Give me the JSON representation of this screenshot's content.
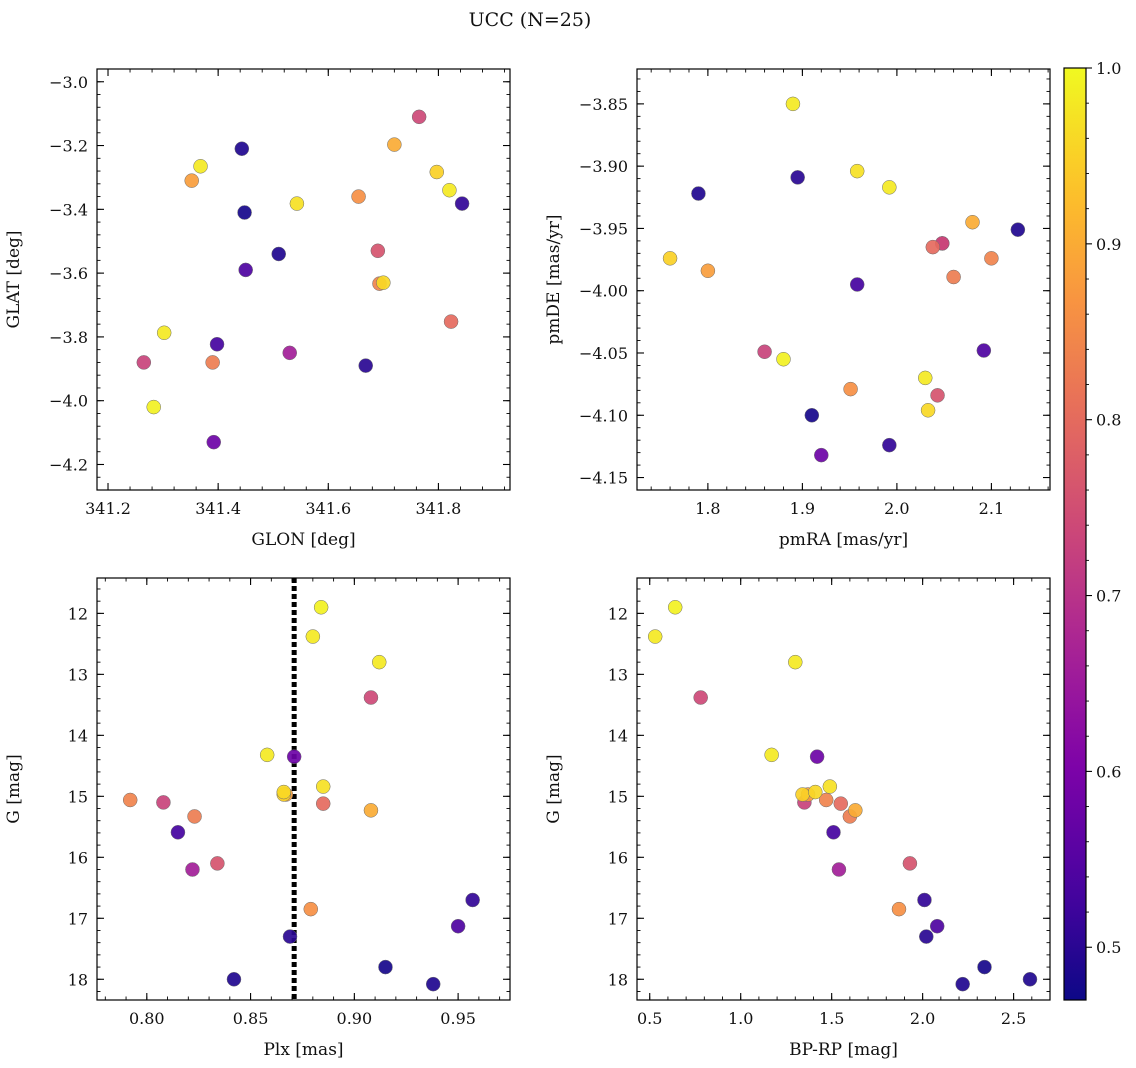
{
  "chart_data": {
    "type": "scatter",
    "title": "UCC (N=25)",
    "colorbar": {
      "range": [
        0.47,
        1.0
      ],
      "ticks": [
        "0.5",
        "0.6",
        "0.7",
        "0.8",
        "0.9",
        "1.0"
      ],
      "colormap": "plasma"
    },
    "panels": [
      {
        "xlabel": "GLON [deg]",
        "ylabel": "GLAT [deg]",
        "xlim": [
          341.18,
          341.93
        ],
        "ylim": [
          -4.28,
          -2.96
        ],
        "invert_y": false,
        "xticks": [
          "341.2",
          "341.4",
          "341.6",
          "341.8"
        ],
        "yticks": [
          "−4.2",
          "−4.0",
          "−3.8",
          "−3.6",
          "−3.4",
          "−3.2",
          "−3.0"
        ]
      },
      {
        "xlabel": "pmRA [mas/yr]",
        "ylabel": "pmDE [mas/yr]",
        "xlim": [
          1.725,
          2.162
        ],
        "ylim": [
          -4.16,
          -3.822
        ],
        "invert_y": false,
        "xticks": [
          "1.8",
          "1.9",
          "2.0",
          "2.1"
        ],
        "yticks": [
          "−4.15",
          "−4.10",
          "−4.05",
          "−4.00",
          "−3.95",
          "−3.90",
          "−3.85"
        ]
      },
      {
        "xlabel": "Plx [mas]",
        "ylabel": "G [mag]",
        "xlim": [
          0.776,
          0.975
        ],
        "ylim": [
          11.42,
          18.34
        ],
        "invert_y": true,
        "vline": 0.871,
        "xticks": [
          "0.80",
          "0.85",
          "0.90",
          "0.95"
        ],
        "yticks": [
          "12",
          "13",
          "14",
          "15",
          "16",
          "17",
          "18"
        ]
      },
      {
        "xlabel": "BP-RP [mag]",
        "ylabel": "G [mag]",
        "xlim": [
          0.43,
          2.7
        ],
        "ylim": [
          11.42,
          18.34
        ],
        "invert_y": true,
        "xticks": [
          "0.5",
          "1.0",
          "1.5",
          "2.0",
          "2.5"
        ],
        "yticks": [
          "12",
          "13",
          "14",
          "15",
          "16",
          "17",
          "18"
        ]
      }
    ],
    "stars": [
      {
        "glon": 341.265,
        "glat": -3.88,
        "pmra": 1.86,
        "pmde": -4.049,
        "plx": 0.808,
        "g": 15.1,
        "bprp": 1.35,
        "p": 0.73
      },
      {
        "glon": 341.283,
        "glat": -4.02,
        "pmra": 1.88,
        "pmde": -4.055,
        "plx": 0.884,
        "g": 11.9,
        "bprp": 0.64,
        "p": 0.99
      },
      {
        "glon": 341.302,
        "glat": -3.787,
        "pmra": 2.03,
        "pmde": -4.07,
        "plx": 0.88,
        "g": 12.38,
        "bprp": 0.53,
        "p": 0.98
      },
      {
        "glon": 341.352,
        "glat": -3.31,
        "pmra": 1.8,
        "pmde": -3.984,
        "plx": 0.867,
        "g": 14.97,
        "bprp": 1.37,
        "p": 0.88
      },
      {
        "glon": 341.368,
        "glat": -3.265,
        "pmra": 1.89,
        "pmde": -3.85,
        "plx": 0.912,
        "g": 12.8,
        "bprp": 1.3,
        "p": 0.98
      },
      {
        "glon": 341.39,
        "glat": -3.88,
        "pmra": 2.06,
        "pmde": -3.989,
        "plx": 0.823,
        "g": 15.33,
        "bprp": 1.6,
        "p": 0.83
      },
      {
        "glon": 341.392,
        "glat": -4.13,
        "pmra": 1.92,
        "pmde": -4.132,
        "plx": 0.871,
        "g": 14.35,
        "bprp": 1.42,
        "p": 0.58
      },
      {
        "glon": 341.398,
        "glat": -3.823,
        "pmra": 1.958,
        "pmde": -3.995,
        "plx": 0.815,
        "g": 15.59,
        "bprp": 1.51,
        "p": 0.53
      },
      {
        "glon": 341.443,
        "glat": -3.21,
        "pmra": 1.79,
        "pmde": -3.922,
        "plx": 0.938,
        "g": 18.08,
        "bprp": 2.22,
        "p": 0.49
      },
      {
        "glon": 341.448,
        "glat": -3.41,
        "pmra": 1.91,
        "pmde": -4.1,
        "plx": 0.915,
        "g": 17.8,
        "bprp": 2.34,
        "p": 0.48
      },
      {
        "glon": 341.45,
        "glat": -3.59,
        "pmra": 2.092,
        "pmde": -4.048,
        "plx": 0.95,
        "g": 17.13,
        "bprp": 2.08,
        "p": 0.54
      },
      {
        "glon": 341.51,
        "glat": -3.54,
        "pmra": 2.128,
        "pmde": -3.951,
        "plx": 0.842,
        "g": 18.0,
        "bprp": 2.59,
        "p": 0.49
      },
      {
        "glon": 341.53,
        "glat": -3.85,
        "pmra": 2.048,
        "pmde": -3.962,
        "plx": 0.822,
        "g": 16.2,
        "bprp": 1.54,
        "p": 0.66
      },
      {
        "glon": 341.543,
        "glat": -3.382,
        "pmra": 1.958,
        "pmde": -3.904,
        "plx": 0.885,
        "g": 14.84,
        "bprp": 1.49,
        "p": 0.97
      },
      {
        "glon": 341.655,
        "glat": -3.36,
        "pmra": 1.951,
        "pmde": -4.079,
        "plx": 0.879,
        "g": 16.85,
        "bprp": 1.87,
        "p": 0.86
      },
      {
        "glon": 341.668,
        "glat": -3.89,
        "pmra": 1.895,
        "pmde": -3.909,
        "plx": 0.869,
        "g": 17.3,
        "bprp": 2.02,
        "p": 0.5
      },
      {
        "glon": 341.69,
        "glat": -3.53,
        "pmra": 2.043,
        "pmde": -4.084,
        "plx": 0.834,
        "g": 16.1,
        "bprp": 1.93,
        "p": 0.76
      },
      {
        "glon": 341.693,
        "glat": -3.633,
        "pmra": 2.1,
        "pmde": -3.974,
        "plx": 0.792,
        "g": 15.06,
        "bprp": 1.47,
        "p": 0.84
      },
      {
        "glon": 341.7,
        "glat": -3.63,
        "pmra": 2.033,
        "pmde": -4.096,
        "plx": 0.866,
        "g": 14.93,
        "bprp": 1.41,
        "p": 0.96
      },
      {
        "glon": 341.72,
        "glat": -3.197,
        "pmra": 2.08,
        "pmde": -3.945,
        "plx": 0.908,
        "g": 15.23,
        "bprp": 1.63,
        "p": 0.9
      },
      {
        "glon": 341.765,
        "glat": -3.11,
        "pmra": 2.048,
        "pmde": -3.962,
        "plx": 0.908,
        "g": 13.38,
        "bprp": 0.78,
        "p": 0.74
      },
      {
        "glon": 341.797,
        "glat": -3.283,
        "pmra": 1.76,
        "pmde": -3.974,
        "plx": 0.866,
        "g": 14.97,
        "bprp": 1.34,
        "p": 0.95
      },
      {
        "glon": 341.82,
        "glat": -3.34,
        "pmra": 1.992,
        "pmde": -3.917,
        "plx": 0.858,
        "g": 14.32,
        "bprp": 1.17,
        "p": 0.98
      },
      {
        "glon": 341.823,
        "glat": -3.752,
        "pmra": 2.038,
        "pmde": -3.965,
        "plx": 0.885,
        "g": 15.12,
        "bprp": 1.55,
        "p": 0.8
      },
      {
        "glon": 341.843,
        "glat": -3.382,
        "pmra": 1.992,
        "pmde": -4.124,
        "plx": 0.957,
        "g": 16.7,
        "bprp": 2.01,
        "p": 0.51
      }
    ]
  }
}
